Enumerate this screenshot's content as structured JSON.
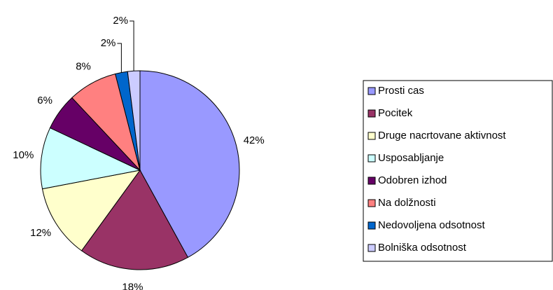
{
  "chart_data": {
    "type": "pie",
    "categories": [
      "Prosti cas",
      "Pocitek",
      "Druge nacrtovane aktivnost",
      "Usposabljanje",
      "Odobren izhod",
      "Na dolžnosti",
      "Nedovoljena odsotnost",
      "Bolniška odsotnost"
    ],
    "values": [
      42,
      18,
      12,
      10,
      6,
      8,
      2,
      2
    ],
    "value_labels": [
      "42%",
      "18%",
      "12%",
      "10%",
      "6%",
      "8%",
      "2%",
      "2%"
    ],
    "colors": [
      "#9999ff",
      "#993366",
      "#ffffcc",
      "#ccffff",
      "#660066",
      "#ff8080",
      "#0066cc",
      "#ccccff"
    ],
    "legend": "right"
  }
}
